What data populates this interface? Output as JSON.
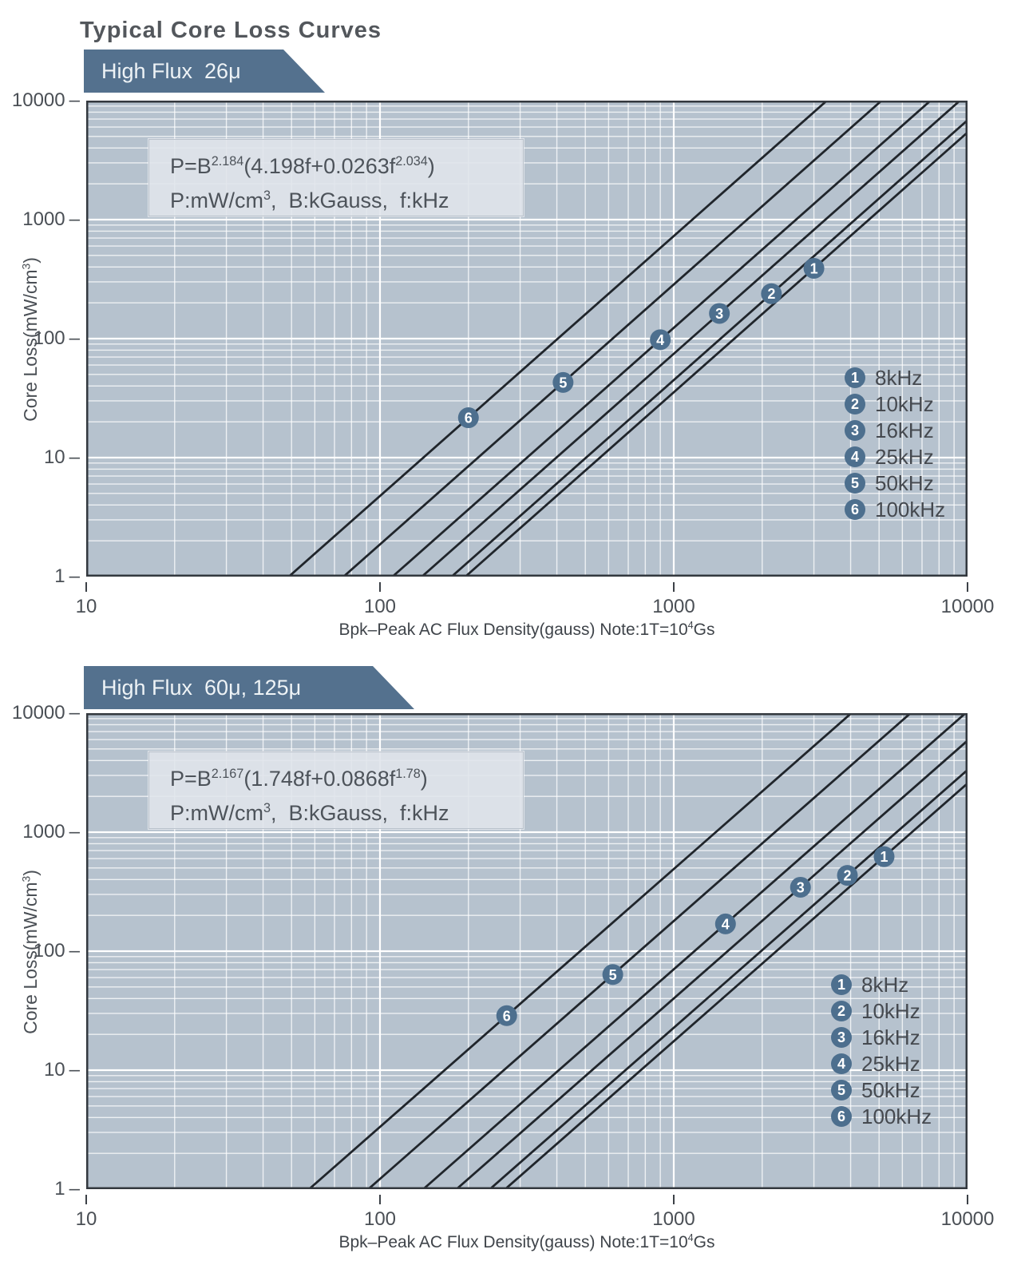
{
  "title": "Typical Core Loss Curves",
  "colors": {
    "banner_bg": "#54718e",
    "banner_text": "#eef3f6",
    "plot_bg": "#b6c2ce",
    "grid_line": "#ffffff",
    "frame": "#33383e",
    "curve": "#20252b",
    "marker_fill": "#4d6f8e",
    "marker_text": "#ffffff",
    "formula_box_bg": "#e0e4eb",
    "text": "#4a4f55"
  },
  "chart_data": [
    {
      "type": "line",
      "title_banner": "High Flux  26μ",
      "x_axis": {
        "scale": "log",
        "range": [
          10,
          10000
        ],
        "ticks": [
          "10",
          "100",
          "1000",
          "10000"
        ],
        "label_parts": [
          {
            "t": "Bpk–Peak AC Flux Density(gauss) Note:1T=10"
          },
          {
            "s": "4"
          },
          {
            "t": "Gs"
          }
        ]
      },
      "y_axis": {
        "scale": "log",
        "range": [
          1,
          10000
        ],
        "ticks": [
          "10000",
          "1000",
          "100",
          "10",
          "1"
        ],
        "tick_dash": "–",
        "label_parts": [
          {
            "t": "Core Loss(mW/cm"
          },
          {
            "s": "3"
          },
          {
            "t": ")"
          }
        ]
      },
      "formula": {
        "line1_parts": [
          {
            "t": "P=B"
          },
          {
            "s": "2.184"
          },
          {
            "t": "(4.198f+0.0263f"
          },
          {
            "s": "2.034"
          },
          {
            "t": ")"
          }
        ],
        "line2_parts": [
          {
            "t": "P:mW/cm"
          },
          {
            "s": "3"
          },
          {
            "t": ",  B:kGauss,  f:kHz"
          }
        ]
      },
      "model": {
        "expression": "P = B^2.184 * (4.198*f + 0.0263*f^2.034)",
        "B_exponent": 2.184,
        "f_coef": 4.198,
        "f2_coef": 0.0263,
        "f2_exponent": 2.034
      },
      "grid": true,
      "legend_position": "lower-right",
      "series": [
        {
          "num": "1",
          "label": "8kHz",
          "f_kHz": 8,
          "marker": {
            "B_gauss": 3000,
            "P_mW_cm3": 390
          }
        },
        {
          "num": "2",
          "label": "10kHz",
          "f_kHz": 10,
          "marker": {
            "B_gauss": 2150,
            "P_mW_cm3": 239
          }
        },
        {
          "num": "3",
          "label": "16kHz",
          "f_kHz": 16,
          "marker": {
            "B_gauss": 1430,
            "P_mW_cm3": 163
          }
        },
        {
          "num": "4",
          "label": "25kHz",
          "f_kHz": 25,
          "marker": {
            "B_gauss": 900,
            "P_mW_cm3": 98
          }
        },
        {
          "num": "5",
          "label": "50kHz",
          "f_kHz": 50,
          "marker": {
            "B_gauss": 420,
            "P_mW_cm3": 43
          }
        },
        {
          "num": "6",
          "label": "100kHz",
          "f_kHz": 100,
          "marker": {
            "B_gauss": 200,
            "P_mW_cm3": 22
          }
        }
      ]
    },
    {
      "type": "line",
      "title_banner": "High Flux  60μ, 125μ",
      "x_axis": {
        "scale": "log",
        "range": [
          10,
          10000
        ],
        "ticks": [
          "10",
          "100",
          "1000",
          "10000"
        ],
        "label_parts": [
          {
            "t": "Bpk–Peak AC Flux Density(gauss) Note:1T=10"
          },
          {
            "s": "4"
          },
          {
            "t": "Gs"
          }
        ]
      },
      "y_axis": {
        "scale": "log",
        "range": [
          1,
          10000
        ],
        "ticks": [
          "10000",
          "1000",
          "100",
          "10",
          "1"
        ],
        "tick_dash": "–",
        "label_parts": [
          {
            "t": "Core Loss(mW/cm"
          },
          {
            "s": "3"
          },
          {
            "t": ")"
          }
        ]
      },
      "formula": {
        "line1_parts": [
          {
            "t": "P=B"
          },
          {
            "s": "2.167"
          },
          {
            "t": "(1.748f+0.0868f"
          },
          {
            "s": "1.78"
          },
          {
            "t": ")"
          }
        ],
        "line2_parts": [
          {
            "t": "P:mW/cm"
          },
          {
            "s": "3"
          },
          {
            "t": ",  B:kGauss,  f:kHz"
          }
        ]
      },
      "model": {
        "expression": "P = B^2.167 * (1.748*f + 0.0868*f^1.78)",
        "B_exponent": 2.167,
        "f_coef": 1.748,
        "f2_coef": 0.0868,
        "f2_exponent": 1.78
      },
      "grid": true,
      "legend_position": "lower-right",
      "series": [
        {
          "num": "1",
          "label": "8kHz",
          "f_kHz": 8,
          "marker": {
            "B_gauss": 5200,
            "P_mW_cm3": 623
          }
        },
        {
          "num": "2",
          "label": "10kHz",
          "f_kHz": 10,
          "marker": {
            "B_gauss": 3900,
            "P_mW_cm3": 434
          }
        },
        {
          "num": "3",
          "label": "16kHz",
          "f_kHz": 16,
          "marker": {
            "B_gauss": 2700,
            "P_mW_cm3": 345
          }
        },
        {
          "num": "4",
          "label": "25kHz",
          "f_kHz": 25,
          "marker": {
            "B_gauss": 1500,
            "P_mW_cm3": 170
          }
        },
        {
          "num": "5",
          "label": "50kHz",
          "f_kHz": 50,
          "marker": {
            "B_gauss": 620,
            "P_mW_cm3": 64
          }
        },
        {
          "num": "6",
          "label": "100kHz",
          "f_kHz": 100,
          "marker": {
            "B_gauss": 270,
            "P_mW_cm3": 29
          }
        }
      ]
    }
  ]
}
